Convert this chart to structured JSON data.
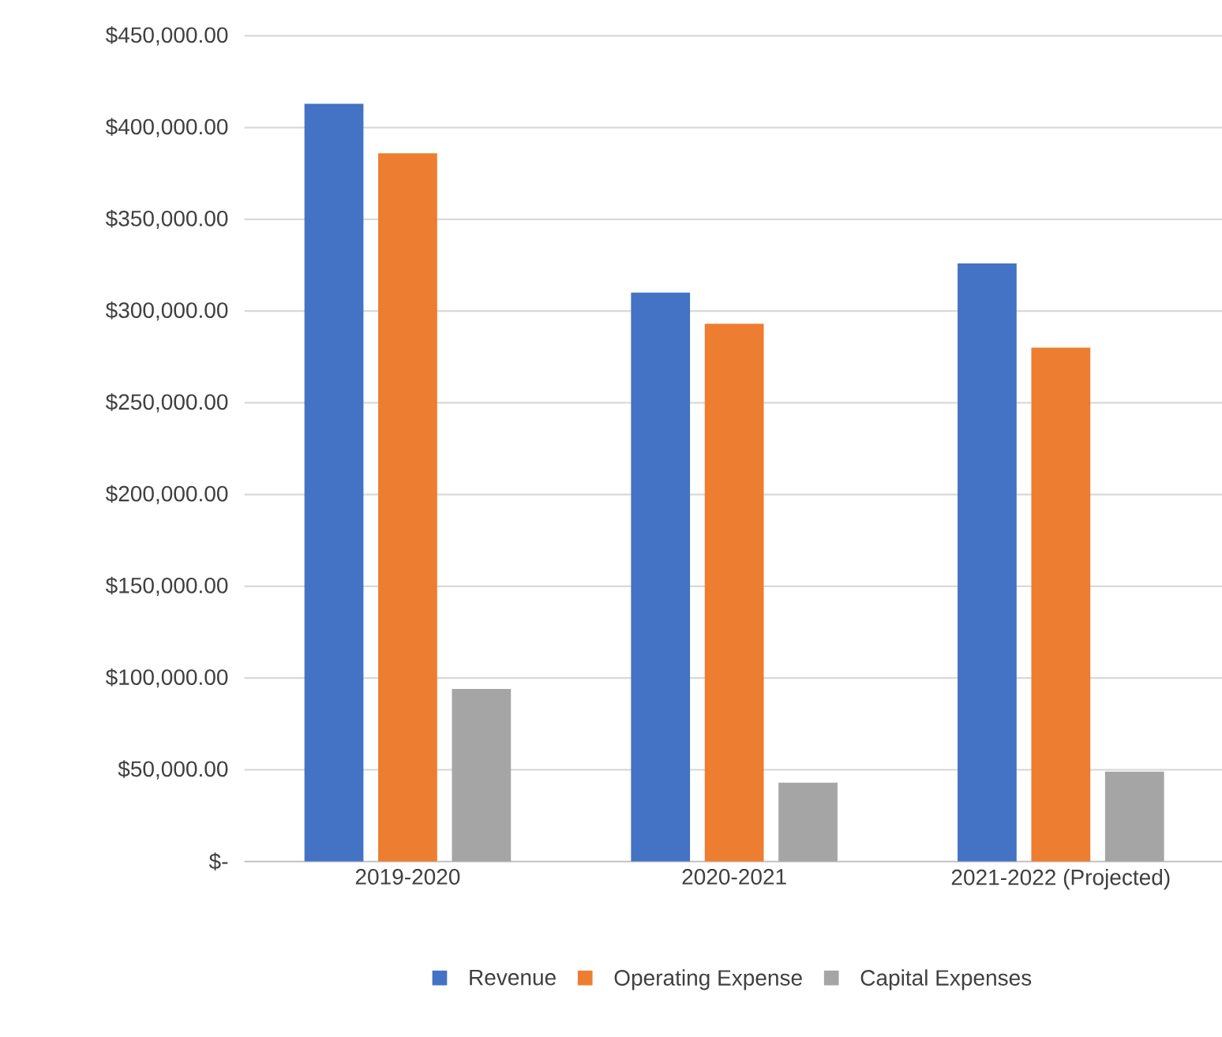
{
  "chart_data": {
    "type": "bar",
    "categories": [
      "2019-2020",
      "2020-2021",
      "2021-2022 (Projected)"
    ],
    "series": [
      {
        "name": "Revenue",
        "color": "#4472c4",
        "values": [
          413000,
          310000,
          326000
        ]
      },
      {
        "name": "Operating Expense",
        "color": "#ed7d31",
        "values": [
          386000,
          293000,
          280000
        ]
      },
      {
        "name": "Capital Expenses",
        "color": "#a5a5a5",
        "values": [
          94000,
          43000,
          49000
        ]
      }
    ],
    "ylim": [
      0,
      450000
    ],
    "yticks": [
      {
        "value": 0,
        "label": "$-"
      },
      {
        "value": 50000,
        "label": "$50,000.00"
      },
      {
        "value": 100000,
        "label": "$100,000.00"
      },
      {
        "value": 150000,
        "label": "$150,000.00"
      },
      {
        "value": 200000,
        "label": "$200,000.00"
      },
      {
        "value": 250000,
        "label": "$250,000.00"
      },
      {
        "value": 300000,
        "label": "$300,000.00"
      },
      {
        "value": 350000,
        "label": "$350,000.00"
      },
      {
        "value": 400000,
        "label": "$400,000.00"
      },
      {
        "value": 450000,
        "label": "$450,000.00"
      }
    ],
    "grid": "y",
    "legend": "bottom"
  }
}
